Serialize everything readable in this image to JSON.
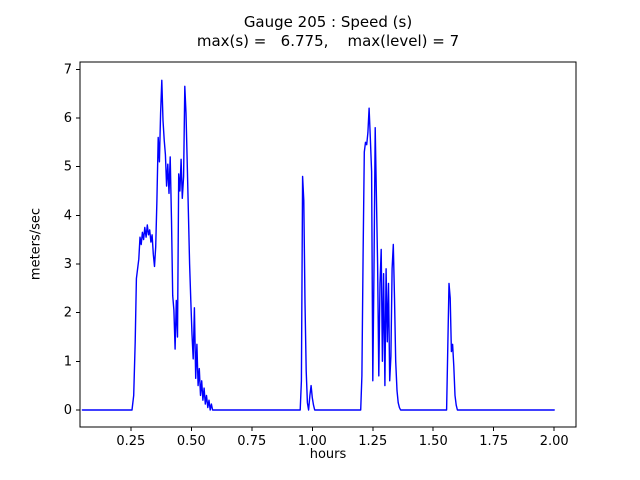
{
  "chart_data": {
    "type": "line",
    "title": "Gauge 205 : Speed (s)",
    "subtitle": "max(s) =   6.775,    max(level) = 7",
    "xlabel": "hours",
    "ylabel": "meters/sec",
    "max_s": 6.775,
    "max_level": 7,
    "xlim": [
      0.04,
      2.09
    ],
    "ylim": [
      -0.35,
      7.15
    ],
    "xticks": [
      0.25,
      0.5,
      0.75,
      1.0,
      1.25,
      1.5,
      1.75,
      2.0
    ],
    "xtick_labels": [
      "0.25",
      "0.50",
      "0.75",
      "1.00",
      "1.25",
      "1.50",
      "1.75",
      "2.00"
    ],
    "yticks": [
      0,
      1,
      2,
      3,
      4,
      5,
      6,
      7
    ],
    "ytick_labels": [
      "0",
      "1",
      "2",
      "3",
      "4",
      "5",
      "6",
      "7"
    ],
    "line_color": "#0000ff",
    "grid": false,
    "legend": "none",
    "series": [
      {
        "name": "speed",
        "x": [
          0.05,
          0.255,
          0.262,
          0.268,
          0.273,
          0.278,
          0.283,
          0.288,
          0.293,
          0.298,
          0.303,
          0.308,
          0.313,
          0.318,
          0.323,
          0.328,
          0.333,
          0.338,
          0.343,
          0.348,
          0.353,
          0.358,
          0.363,
          0.368,
          0.373,
          0.378,
          0.383,
          0.388,
          0.393,
          0.398,
          0.403,
          0.408,
          0.413,
          0.418,
          0.423,
          0.428,
          0.433,
          0.438,
          0.443,
          0.448,
          0.453,
          0.458,
          0.463,
          0.468,
          0.473,
          0.478,
          0.483,
          0.488,
          0.493,
          0.498,
          0.503,
          0.508,
          0.513,
          0.518,
          0.523,
          0.528,
          0.533,
          0.538,
          0.543,
          0.548,
          0.553,
          0.558,
          0.563,
          0.568,
          0.573,
          0.578,
          0.583,
          0.588,
          0.6,
          0.95,
          0.955,
          0.96,
          0.965,
          0.97,
          0.975,
          0.98,
          0.985,
          0.99,
          0.995,
          1.0,
          1.005,
          1.01,
          1.02,
          1.2,
          1.205,
          1.21,
          1.215,
          1.22,
          1.225,
          1.23,
          1.235,
          1.24,
          1.245,
          1.25,
          1.255,
          1.26,
          1.265,
          1.27,
          1.275,
          1.28,
          1.285,
          1.29,
          1.295,
          1.3,
          1.305,
          1.31,
          1.315,
          1.32,
          1.325,
          1.33,
          1.335,
          1.34,
          1.345,
          1.35,
          1.355,
          1.36,
          1.365,
          1.37,
          1.4,
          1.555,
          1.56,
          1.565,
          1.57,
          1.575,
          1.58,
          1.585,
          1.59,
          1.595,
          1.6,
          1.61,
          2.0
        ],
        "y": [
          0,
          0,
          0.3,
          1.4,
          2.7,
          2.9,
          3.1,
          3.55,
          3.4,
          3.65,
          3.5,
          3.75,
          3.55,
          3.8,
          3.6,
          3.7,
          3.45,
          3.6,
          3.2,
          2.95,
          3.35,
          4.3,
          5.6,
          5.1,
          6.1,
          6.775,
          5.95,
          5.55,
          5.25,
          4.6,
          5.05,
          4.45,
          5.2,
          3.9,
          2.35,
          2.05,
          1.25,
          2.25,
          1.5,
          4.85,
          4.5,
          5.15,
          4.35,
          4.8,
          6.65,
          6.1,
          5.1,
          4.05,
          3.0,
          2.25,
          1.55,
          1.05,
          2.1,
          0.65,
          1.35,
          0.5,
          0.85,
          0.3,
          0.6,
          0.2,
          0.45,
          0.12,
          0.3,
          0.05,
          0.2,
          0.0,
          0.12,
          0.0,
          0.0,
          0.0,
          0.6,
          4.8,
          4.3,
          2.2,
          0.8,
          0.15,
          0.0,
          0.3,
          0.5,
          0.25,
          0.1,
          0.0,
          0.0,
          0.0,
          0.7,
          3.2,
          5.3,
          5.5,
          5.45,
          5.7,
          6.2,
          5.6,
          4.9,
          0.6,
          2.9,
          5.8,
          4.4,
          3.0,
          0.7,
          2.6,
          3.3,
          1.0,
          2.8,
          0.5,
          2.9,
          1.4,
          2.6,
          0.6,
          1.1,
          2.9,
          3.4,
          2.3,
          1.0,
          0.4,
          0.15,
          0.05,
          0.0,
          0.0,
          0.0,
          0.0,
          1.3,
          2.6,
          2.3,
          1.2,
          1.35,
          0.9,
          0.3,
          0.1,
          0.0,
          0.0,
          0.0
        ]
      }
    ]
  }
}
